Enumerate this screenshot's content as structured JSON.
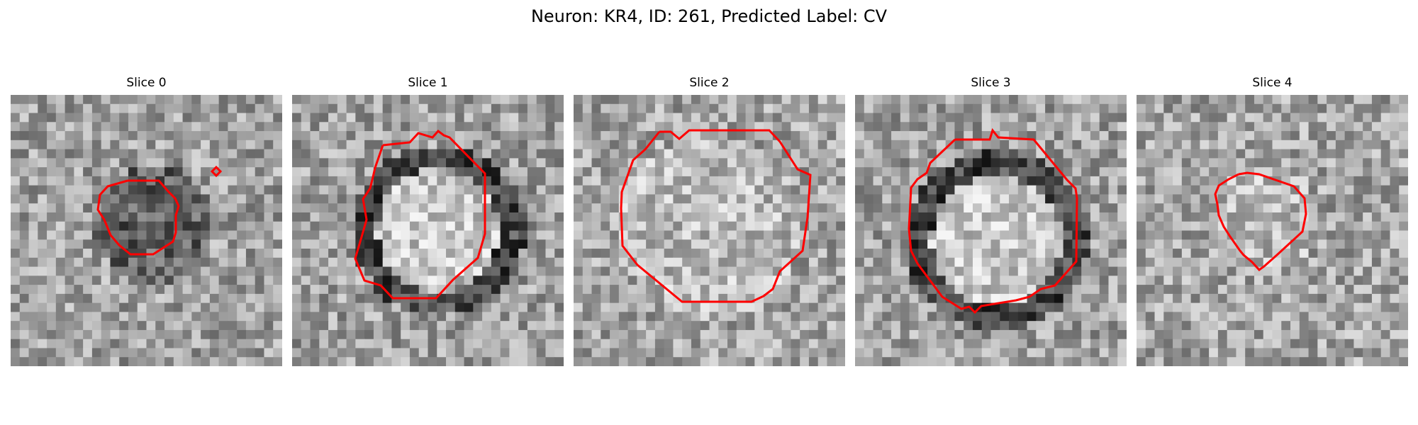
{
  "figure": {
    "title": "Neuron: KR4, ID: 261, Predicted Label: CV"
  },
  "colors": {
    "contour": "#ff0000",
    "background": "#ffffff"
  },
  "panels": [
    {
      "title": "Slice 0",
      "brightness": "darker-center",
      "outline": "irregular-roi-left-with-small-diamond"
    },
    {
      "title": "Slice 1",
      "brightness": "bright-center-dark-ring",
      "outline": "octagon-large"
    },
    {
      "title": "Slice 2",
      "brightness": "uniform-light",
      "outline": "octagon-largest"
    },
    {
      "title": "Slice 3",
      "brightness": "bright-center-dark-ring",
      "outline": "octagon-medium"
    },
    {
      "title": "Slice 4",
      "brightness": "uniform-light",
      "outline": "octagon-small"
    }
  ]
}
